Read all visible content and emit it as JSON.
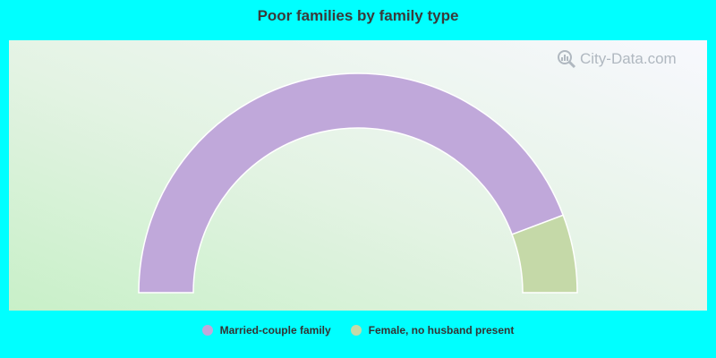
{
  "chart_data": {
    "type": "pie",
    "subtype": "semi-donut",
    "title": "Poor families by family type",
    "categories": [
      "Married-couple family",
      "Female, no husband present"
    ],
    "values": [
      88.5,
      11.5
    ],
    "colors": [
      "#c0a8da",
      "#c5d9a8"
    ],
    "legend_position": "bottom",
    "grid": false
  },
  "watermark": {
    "text": "City-Data.com",
    "icon": "magnifier-chart-icon"
  }
}
